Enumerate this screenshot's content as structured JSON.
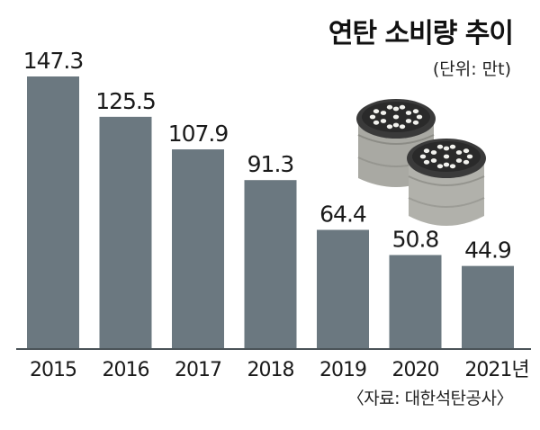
{
  "title": "연탄 소비량 추이",
  "unit_label": "(단위: 만t)",
  "source": "〈자료: 대한석탄공사〉",
  "colors": {
    "bar": "#6b7880",
    "baseline": "#4a5358",
    "background": "#ffffff"
  },
  "image_icon": "coal-briquettes-icon",
  "chart_data": {
    "type": "bar",
    "title": "연탄 소비량 추이",
    "unit": "만t",
    "categories": [
      "2015",
      "2016",
      "2017",
      "2018",
      "2019",
      "2020",
      "2021년"
    ],
    "values": [
      147.3,
      125.5,
      107.9,
      91.3,
      64.4,
      50.8,
      44.9
    ],
    "value_labels": [
      "147.3",
      "125.5",
      "107.9",
      "91.3",
      "64.4",
      "50.8",
      "44.9"
    ],
    "xlabel": "",
    "ylabel": "",
    "ylim": [
      0,
      150
    ],
    "grid": false,
    "legend": "none"
  }
}
